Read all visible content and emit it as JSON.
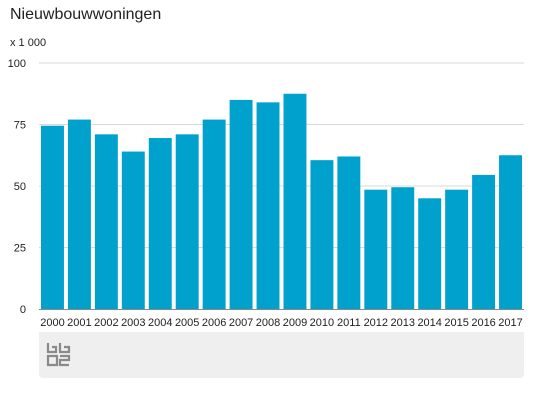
{
  "chart_data": {
    "type": "bar",
    "title": "Nieuwbouwwoningen",
    "unit_label": "x 1 000",
    "categories": [
      "2000",
      "2001",
      "2002",
      "2003",
      "2004",
      "2005",
      "2006",
      "2007",
      "2008",
      "2009",
      "2010",
      "2011",
      "2012",
      "2013",
      "2014",
      "2015",
      "2016",
      "2017"
    ],
    "values": [
      74.5,
      77,
      71,
      64,
      69.5,
      71,
      77,
      85,
      84,
      87.5,
      60.5,
      62,
      48.5,
      49.5,
      45,
      48.5,
      54.5,
      62.5
    ],
    "ylim": [
      0,
      100
    ],
    "yticks": [
      "0",
      "25",
      "50",
      "75",
      "100"
    ],
    "ytick_values": [
      0,
      25,
      50,
      75,
      100
    ],
    "grid": true,
    "bar_color": "#00a1cd",
    "grid_color": "#d9d9d9",
    "axis_color": "#888888",
    "xlabel": "",
    "ylabel": ""
  },
  "footer": {
    "logo_icon": "cbs-logo-icon",
    "panel_color": "#efefef"
  }
}
